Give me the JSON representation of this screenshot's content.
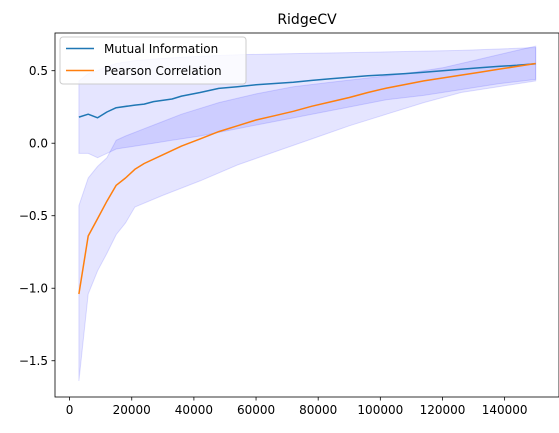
{
  "chart_data": {
    "type": "line",
    "title": "RidgeCV",
    "xlabel": "",
    "ylabel": "",
    "xlim": [
      -4700,
      157500
    ],
    "ylim": [
      -1.75,
      0.76
    ],
    "x_ticks": [
      {
        "value": 0,
        "label": "0"
      },
      {
        "value": 20000,
        "label": "20000"
      },
      {
        "value": 40000,
        "label": "40000"
      },
      {
        "value": 60000,
        "label": "60000"
      },
      {
        "value": 80000,
        "label": "80000"
      },
      {
        "value": 100000,
        "label": "100000"
      },
      {
        "value": 120000,
        "label": "120000"
      },
      {
        "value": 140000,
        "label": "140000"
      }
    ],
    "y_ticks": [
      {
        "value": 0.5,
        "label": "0.5"
      },
      {
        "value": 0.0,
        "label": "0.0"
      },
      {
        "value": -0.5,
        "label": "−0.5"
      },
      {
        "value": -1.0,
        "label": "−1.0"
      },
      {
        "value": -1.5,
        "label": "−1.5"
      }
    ],
    "grid": false,
    "legend": {
      "placement": "top-left"
    },
    "band_fill": "#0000ff",
    "band_opacity": 0.1,
    "series": [
      {
        "name": "Mutual Information",
        "color": "#1f77b4",
        "points": [
          [
            3000,
            0.18
          ],
          [
            6000,
            0.2
          ],
          [
            9000,
            0.175
          ],
          [
            12000,
            0.215
          ],
          [
            15000,
            0.245
          ],
          [
            21000,
            0.263
          ],
          [
            24000,
            0.27
          ],
          [
            27000,
            0.287
          ],
          [
            33000,
            0.305
          ],
          [
            36000,
            0.325
          ],
          [
            42000,
            0.35
          ],
          [
            48000,
            0.378
          ],
          [
            54000,
            0.39
          ],
          [
            60000,
            0.403
          ],
          [
            72000,
            0.421
          ],
          [
            78000,
            0.433
          ],
          [
            84000,
            0.445
          ],
          [
            90000,
            0.455
          ],
          [
            96000,
            0.465
          ],
          [
            102000,
            0.472
          ],
          [
            108000,
            0.48
          ],
          [
            114000,
            0.49
          ],
          [
            120000,
            0.5
          ],
          [
            126000,
            0.51
          ],
          [
            132000,
            0.52
          ],
          [
            138000,
            0.53
          ],
          [
            144000,
            0.537
          ],
          [
            150000,
            0.548
          ]
        ],
        "band_upper": [
          [
            3000,
            0.43
          ],
          [
            6000,
            0.48
          ],
          [
            9000,
            0.5
          ],
          [
            12000,
            0.53
          ],
          [
            15000,
            0.55
          ],
          [
            21000,
            0.57
          ],
          [
            30000,
            0.585
          ],
          [
            42000,
            0.6
          ],
          [
            54000,
            0.61
          ],
          [
            66000,
            0.615
          ],
          [
            78000,
            0.62
          ],
          [
            90000,
            0.625
          ],
          [
            102000,
            0.63
          ],
          [
            114000,
            0.635
          ],
          [
            126000,
            0.64
          ],
          [
            138000,
            0.65
          ],
          [
            150000,
            0.66
          ]
        ],
        "band_lower": [
          [
            3000,
            -0.07
          ],
          [
            6000,
            -0.07
          ],
          [
            9000,
            -0.1
          ],
          [
            12000,
            -0.07
          ],
          [
            15000,
            -0.04
          ],
          [
            21000,
            -0.02
          ],
          [
            27000,
            0.0
          ],
          [
            33000,
            0.02
          ],
          [
            42000,
            0.05
          ],
          [
            54000,
            0.1
          ],
          [
            66000,
            0.15
          ],
          [
            78000,
            0.2
          ],
          [
            90000,
            0.25
          ],
          [
            102000,
            0.3
          ],
          [
            114000,
            0.33
          ],
          [
            126000,
            0.37
          ],
          [
            138000,
            0.41
          ],
          [
            150000,
            0.44
          ]
        ]
      },
      {
        "name": "Pearson Correlation",
        "color": "#ff7f0e",
        "points": [
          [
            3000,
            -1.04
          ],
          [
            6000,
            -0.64
          ],
          [
            9000,
            -0.52
          ],
          [
            12000,
            -0.4
          ],
          [
            15000,
            -0.29
          ],
          [
            18000,
            -0.24
          ],
          [
            21000,
            -0.18
          ],
          [
            24000,
            -0.14
          ],
          [
            30000,
            -0.08
          ],
          [
            36000,
            -0.02
          ],
          [
            42000,
            0.03
          ],
          [
            48000,
            0.08
          ],
          [
            54000,
            0.12
          ],
          [
            60000,
            0.16
          ],
          [
            66000,
            0.19
          ],
          [
            72000,
            0.22
          ],
          [
            78000,
            0.255
          ],
          [
            84000,
            0.285
          ],
          [
            90000,
            0.315
          ],
          [
            96000,
            0.35
          ],
          [
            102000,
            0.38
          ],
          [
            108000,
            0.405
          ],
          [
            114000,
            0.43
          ],
          [
            120000,
            0.45
          ],
          [
            126000,
            0.47
          ],
          [
            132000,
            0.49
          ],
          [
            138000,
            0.51
          ],
          [
            144000,
            0.53
          ],
          [
            150000,
            0.55
          ]
        ],
        "band_upper": [
          [
            3000,
            -0.43
          ],
          [
            6000,
            -0.24
          ],
          [
            9000,
            -0.16
          ],
          [
            12000,
            -0.1
          ],
          [
            15000,
            0.02
          ],
          [
            18000,
            0.05
          ],
          [
            24000,
            0.1
          ],
          [
            30000,
            0.15
          ],
          [
            36000,
            0.2
          ],
          [
            48000,
            0.28
          ],
          [
            60000,
            0.34
          ],
          [
            72000,
            0.39
          ],
          [
            84000,
            0.42
          ],
          [
            96000,
            0.45
          ],
          [
            108000,
            0.48
          ],
          [
            120000,
            0.52
          ],
          [
            132000,
            0.58
          ],
          [
            144000,
            0.64
          ],
          [
            150000,
            0.67
          ]
        ],
        "band_lower": [
          [
            3000,
            -1.64
          ],
          [
            6000,
            -1.04
          ],
          [
            9000,
            -0.88
          ],
          [
            12000,
            -0.76
          ],
          [
            15000,
            -0.63
          ],
          [
            18000,
            -0.55
          ],
          [
            21000,
            -0.44
          ],
          [
            30000,
            -0.36
          ],
          [
            42000,
            -0.26
          ],
          [
            54000,
            -0.15
          ],
          [
            66000,
            -0.06
          ],
          [
            78000,
            0.03
          ],
          [
            90000,
            0.12
          ],
          [
            102000,
            0.2
          ],
          [
            114000,
            0.28
          ],
          [
            126000,
            0.35
          ],
          [
            138000,
            0.39
          ],
          [
            150000,
            0.43
          ]
        ]
      }
    ]
  }
}
